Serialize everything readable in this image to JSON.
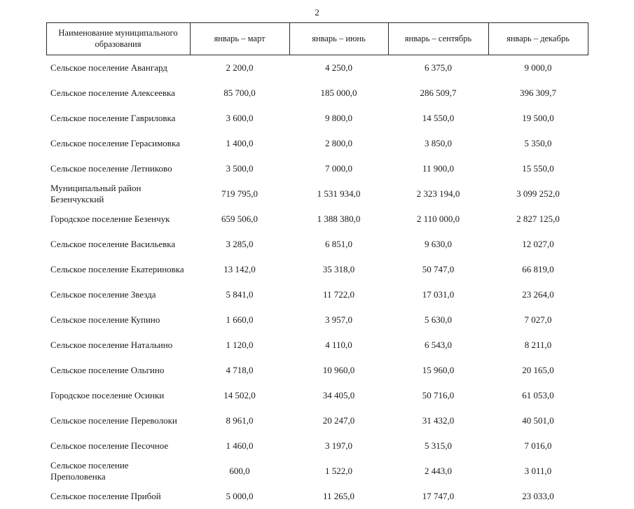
{
  "page": {
    "number": "2"
  },
  "table": {
    "headers": [
      "Наименование муниципального образования",
      "январь – март",
      "январь – июнь",
      "январь – сентябрь",
      "январь – декабрь"
    ],
    "rows": [
      {
        "name": "Сельское поселение Авангард",
        "values": [
          "2 200,0",
          "4 250,0",
          "6 375,0",
          "9 000,0"
        ]
      },
      {
        "name": "Сельское поселение Алексеевка",
        "values": [
          "85 700,0",
          "185 000,0",
          "286 509,7",
          "396 309,7"
        ]
      },
      {
        "name": "Сельское поселение Гавриловка",
        "values": [
          "3 600,0",
          "9 800,0",
          "14 550,0",
          "19 500,0"
        ]
      },
      {
        "name": "Сельское поселение Герасимовка",
        "values": [
          "1 400,0",
          "2 800,0",
          "3 850,0",
          "5 350,0"
        ]
      },
      {
        "name": "Сельское поселение Летниково",
        "values": [
          "3 500,0",
          "7 000,0",
          "11 900,0",
          "15 550,0"
        ]
      },
      {
        "name": "Муниципальный район Безенчукский",
        "values": [
          "719 795,0",
          "1 531 934,0",
          "2 323 194,0",
          "3 099 252,0"
        ]
      },
      {
        "name": "Городское поселение Безенчук",
        "values": [
          "659 506,0",
          "1 388 380,0",
          "2 110 000,0",
          "2 827 125,0"
        ]
      },
      {
        "name": "Сельское поселение Васильевка",
        "values": [
          "3 285,0",
          "6 851,0",
          "9 630,0",
          "12 027,0"
        ]
      },
      {
        "name": "Сельское поселение Екатериновка",
        "values": [
          "13 142,0",
          "35 318,0",
          "50 747,0",
          "66 819,0"
        ]
      },
      {
        "name": "Сельское поселение Звезда",
        "values": [
          "5 841,0",
          "11 722,0",
          "17 031,0",
          "23 264,0"
        ]
      },
      {
        "name": "Сельское поселение Купино",
        "values": [
          "1 660,0",
          "3 957,0",
          "5 630,0",
          "7 027,0"
        ]
      },
      {
        "name": "Сельское поселение Натальино",
        "values": [
          "1 120,0",
          "4 110,0",
          "6 543,0",
          "8 211,0"
        ]
      },
      {
        "name": "Сельское поселение Ольгино",
        "values": [
          "4 718,0",
          "10 960,0",
          "15 960,0",
          "20 165,0"
        ]
      },
      {
        "name": "Городское поселение Осинки",
        "values": [
          "14 502,0",
          "34 405,0",
          "50 716,0",
          "61 053,0"
        ]
      },
      {
        "name": "Сельское поселение Переволоки",
        "values": [
          "8 961,0",
          "20 247,0",
          "31 432,0",
          "40 501,0"
        ]
      },
      {
        "name": "Сельское поселение Песочное",
        "values": [
          "1 460,0",
          "3 197,0",
          "5 315,0",
          "7 016,0"
        ]
      },
      {
        "name": "Сельское поселение Преполовенка",
        "values": [
          "600,0",
          "1 522,0",
          "2 443,0",
          "3 011,0"
        ]
      },
      {
        "name": "Сельское поселение Прибой",
        "values": [
          "5 000,0",
          "11 265,0",
          "17 747,0",
          "23 033,0"
        ]
      }
    ]
  }
}
